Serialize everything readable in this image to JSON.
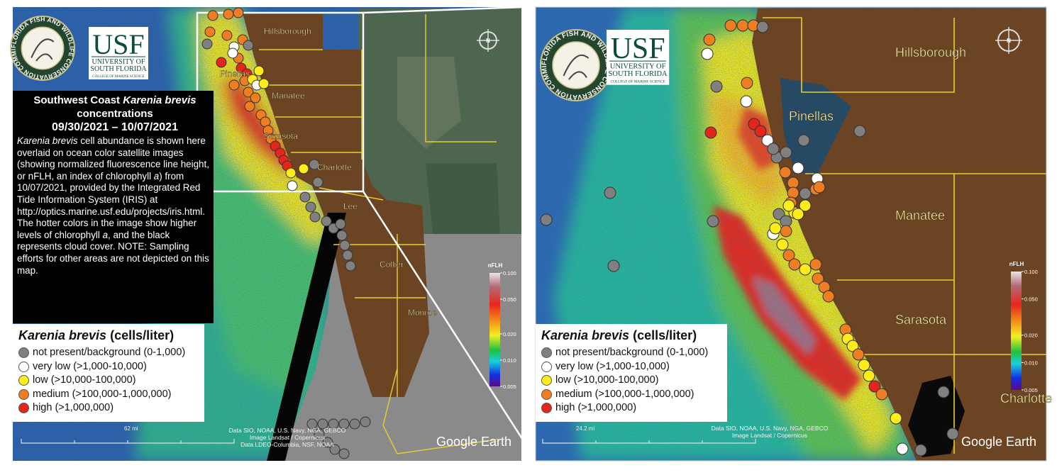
{
  "logos": {
    "fwc_seal": "FLORIDA FISH AND WILDLIFE CONSERVATION COMMISSION",
    "usf": "USF",
    "usf_line_1": "UNIVERSITY OF",
    "usf_line_2": "SOUTH FLORIDA",
    "usf_line_3": "COLLEGE OF MARINE SCIENCE"
  },
  "info_box": {
    "title_prefix": "Southwest Coast",
    "title_species": "Karenia brevis",
    "title_line_2": "concentrations",
    "title_dates": "09/30/2021 – 10/07/2021",
    "description": [
      {
        "text": "Karenia brevis",
        "italic": true
      },
      {
        "text": "cell abundance is shown here overlaid on ocean color satellite images (showing normalized fluorescence line height, or nFLH, an index of chlorophyll",
        "italic": false
      },
      {
        "text": "a",
        "italic": true
      },
      {
        "text": ") from 10/07/2021, provided by the Integrated Red Tide Information System (IRIS) at http://optics.marine.usf.edu/projects/iris.html. The hotter colors in the image show higher levels of chlorophyll",
        "italic": false
      },
      {
        "text": "a",
        "italic": true
      },
      {
        "text": ", and the black represents cloud cover. NOTE: Sampling efforts for other areas are not depicted on this map.",
        "italic": false
      }
    ]
  },
  "legend": {
    "title_species": "Karenia brevis",
    "title_unit": "(cells/liter)",
    "items": [
      {
        "label": "not present/background (0-1,000)",
        "color": "#808080"
      },
      {
        "label": "very low (>1,000-10,000)",
        "color": "#ffffff"
      },
      {
        "label": "low (>10,000-100,000)",
        "color": "#ffec1a"
      },
      {
        "label": "medium (>100,000-1,000,000)",
        "color": "#ef7d22"
      },
      {
        "label": "high (>1,000,000)",
        "color": "#e3261c"
      }
    ]
  },
  "colorbar": {
    "title": "nFLH",
    "log_scale": true,
    "range": [
      0.005,
      0.1
    ],
    "ticks": [
      {
        "value": 0.1,
        "label": "0.100"
      },
      {
        "value": 0.05,
        "label": "0.050"
      },
      {
        "value": 0.02,
        "label": "0.020"
      },
      {
        "value": 0.01,
        "label": "0.010"
      },
      {
        "value": 0.005,
        "label": "0.005"
      }
    ]
  },
  "compass": "N",
  "google_earth": "Google Earth",
  "left_map": {
    "labels": [
      "Hillsborough",
      "Pinellas",
      "Manatee",
      "Sarasota",
      "Charlotte",
      "Lee",
      "Collier",
      "Monroe"
    ],
    "scale": "62 mi",
    "attribution": [
      "Data SIO, NOAA, U.S. Navy, NGA, GEBCO",
      "Image Landsat / Copernicus",
      "Data LDEO-Columbia, NSF, NOAA"
    ]
  },
  "right_map": {
    "labels": [
      "Hillsborough",
      "Pinellas",
      "Manatee",
      "Sarasota",
      "Charlotte"
    ],
    "scale": "24.2 mi",
    "attribution": [
      "Data SIO, NOAA, U.S. Navy, NGA, GEBCO",
      "Image Landsat / Copernicus"
    ]
  }
}
